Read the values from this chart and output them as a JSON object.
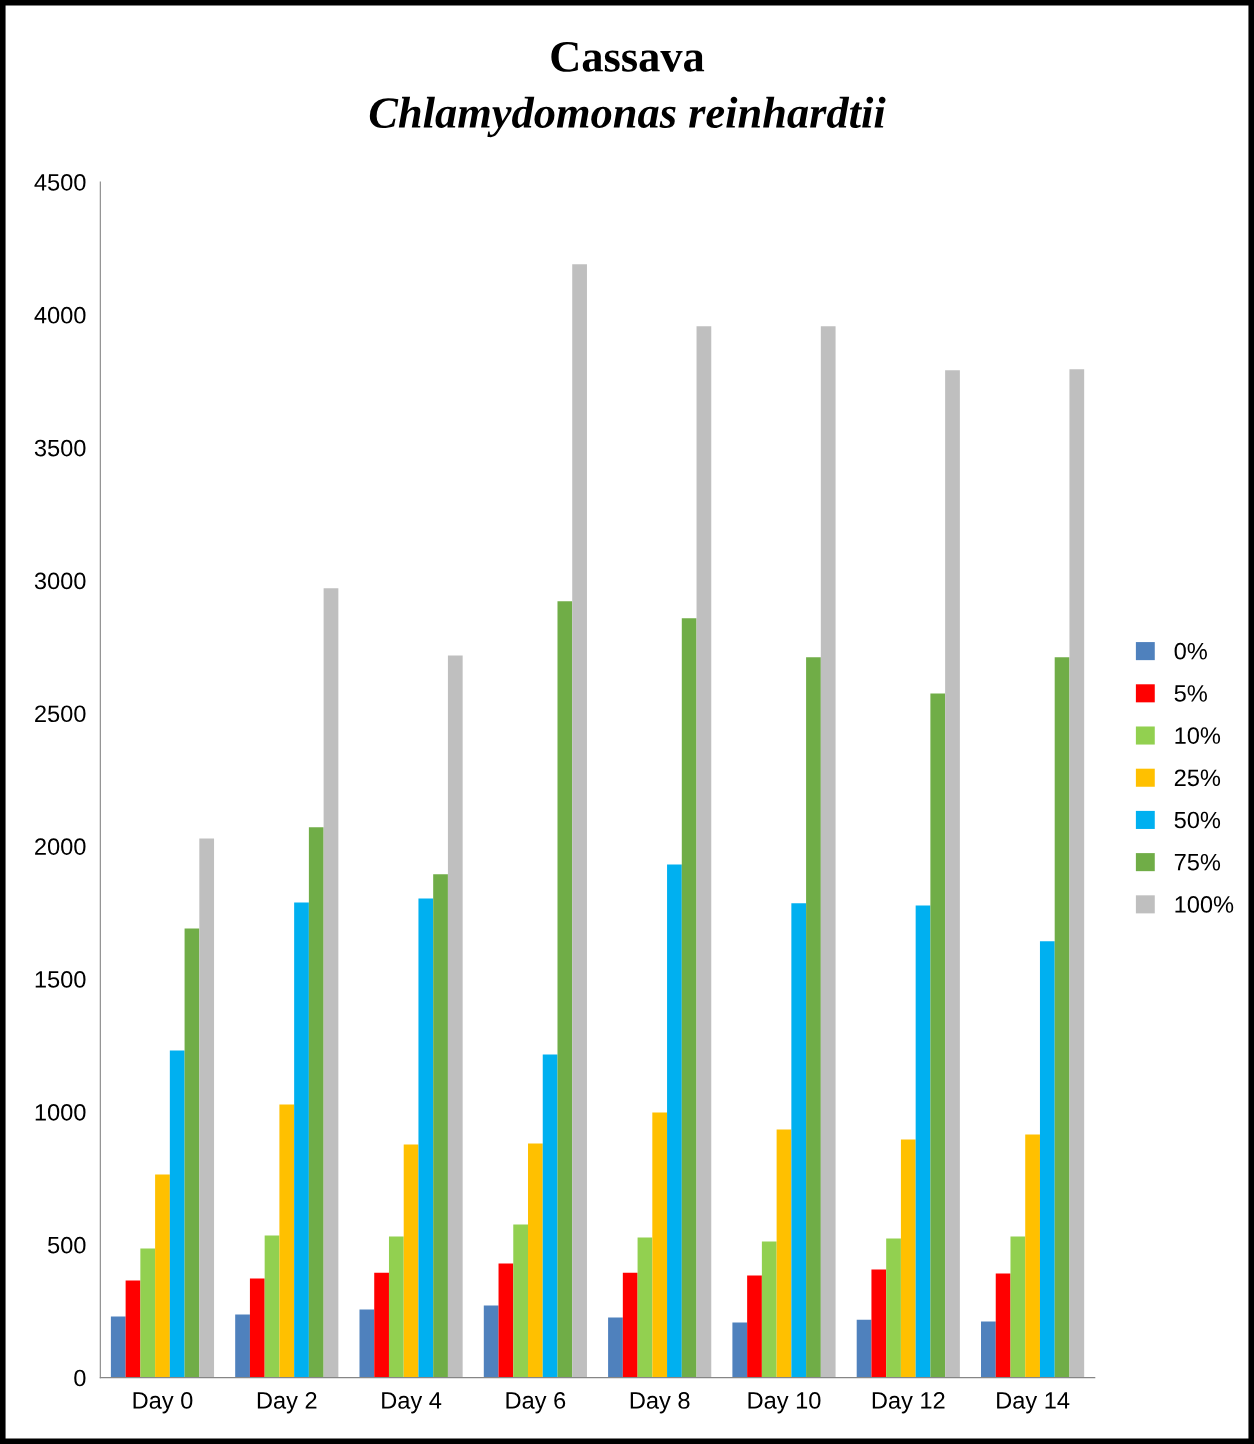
{
  "chart_data": {
    "type": "bar",
    "title": "Cassava",
    "subtitle": "Chlamydomonas reinhardtii",
    "categories": [
      "Day 0",
      "Day 2",
      "Day 4",
      "Day 6",
      "Day 8",
      "Day 10",
      "Day 12",
      "Day 14"
    ],
    "series": [
      {
        "name": "0%",
        "color": "#4f81bd",
        "values": [
          230,
          237,
          256,
          271,
          226,
          207,
          218,
          211
        ]
      },
      {
        "name": "5%",
        "color": "#ff0000",
        "values": [
          365,
          373,
          395,
          429,
          395,
          384,
          407,
          392
        ]
      },
      {
        "name": "10%",
        "color": "#92d050",
        "values": [
          486,
          535,
          531,
          576,
          527,
          512,
          523,
          531
        ]
      },
      {
        "name": "25%",
        "color": "#ffc000",
        "values": [
          764,
          1028,
          877,
          881,
          998,
          934,
          896,
          915
        ]
      },
      {
        "name": "50%",
        "color": "#00b0f0",
        "values": [
          1231,
          1788,
          1803,
          1216,
          1931,
          1785,
          1777,
          1642
        ]
      },
      {
        "name": "75%",
        "color": "#70ad47",
        "values": [
          1690,
          2071,
          1894,
          2922,
          2858,
          2711,
          2575,
          2711
        ]
      },
      {
        "name": "100%",
        "color": "#bfbfbf",
        "values": [
          2029,
          2971,
          2718,
          4190,
          3957,
          3957,
          3791,
          3795
        ]
      }
    ],
    "ylim": [
      0,
      4500
    ],
    "yticks": [
      0,
      500,
      1000,
      1500,
      2000,
      2500,
      3000,
      3500,
      4000,
      4500
    ],
    "grid": false,
    "legend": "right"
  }
}
